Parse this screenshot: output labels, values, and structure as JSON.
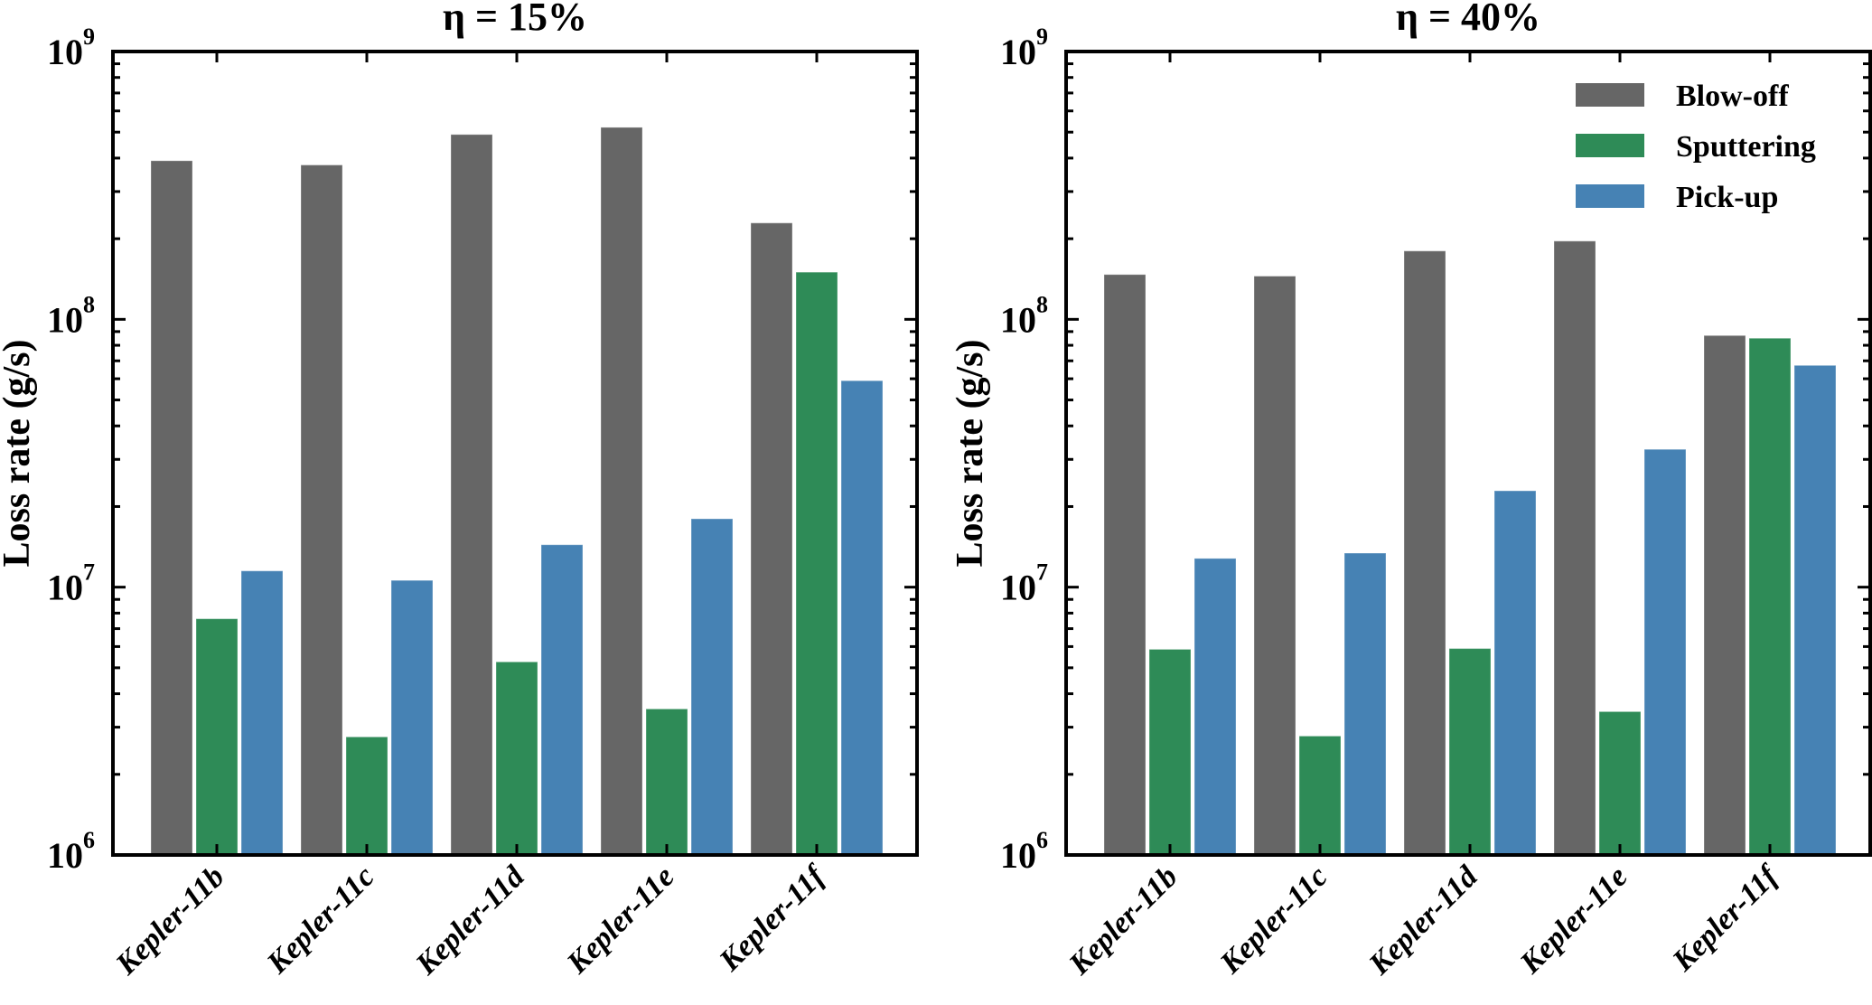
{
  "chart_data": [
    {
      "type": "bar",
      "title": "η = 15%",
      "xlabel": "",
      "ylabel": "Loss rate (g/s)",
      "yscale": "log",
      "ylim": [
        1000000,
        1000000000
      ],
      "yticks": [
        {
          "base": "10",
          "exp": "6"
        },
        {
          "base": "10",
          "exp": "7"
        },
        {
          "base": "10",
          "exp": "8"
        },
        {
          "base": "10",
          "exp": "9"
        }
      ],
      "categories": [
        "Kepler-11b",
        "Kepler-11c",
        "Kepler-11d",
        "Kepler-11e",
        "Kepler-11f"
      ],
      "series": [
        {
          "name": "Blow-off",
          "color": "#666666",
          "values": [
            391000000,
            377000000,
            490000000,
            521000000,
            229000000
          ]
        },
        {
          "name": "Sputtering",
          "color": "#2e8b57",
          "values": [
            7620000,
            2760000,
            5260000,
            3510000,
            150000000
          ]
        },
        {
          "name": "Pick-up",
          "color": "#4682b4",
          "values": [
            11500000,
            10600000,
            14400000,
            18000000,
            59000000
          ]
        }
      ],
      "legend": null,
      "grid": false
    },
    {
      "type": "bar",
      "title": "η = 40%",
      "xlabel": "",
      "ylabel": "Loss rate (g/s)",
      "yscale": "log",
      "ylim": [
        1000000,
        1000000000
      ],
      "yticks": [
        {
          "base": "10",
          "exp": "6"
        },
        {
          "base": "10",
          "exp": "7"
        },
        {
          "base": "10",
          "exp": "8"
        },
        {
          "base": "10",
          "exp": "9"
        }
      ],
      "categories": [
        "Kepler-11b",
        "Kepler-11c",
        "Kepler-11d",
        "Kepler-11e",
        "Kepler-11f"
      ],
      "series": [
        {
          "name": "Blow-off",
          "color": "#666666",
          "values": [
            147000000,
            145000000,
            180000000,
            196000000,
            87000000
          ]
        },
        {
          "name": "Sputtering",
          "color": "#2e8b57",
          "values": [
            5860000,
            2780000,
            5900000,
            3430000,
            85000000
          ]
        },
        {
          "name": "Pick-up",
          "color": "#4682b4",
          "values": [
            12800000,
            13400000,
            22900000,
            32700000,
            67300000
          ]
        }
      ],
      "legend": "top-right",
      "grid": false
    }
  ]
}
